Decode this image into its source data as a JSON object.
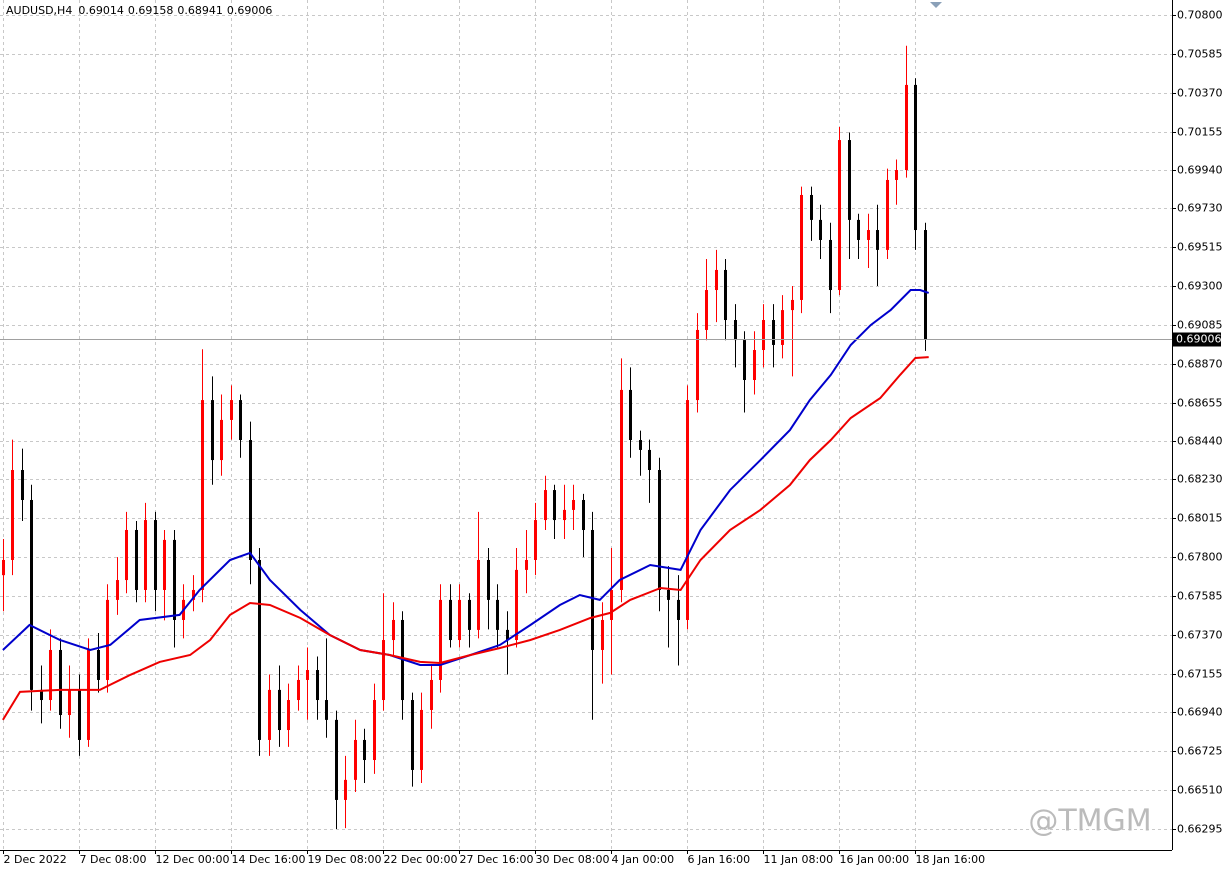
{
  "chart_data": {
    "type": "candlestick",
    "symbol": "AUDUSD,H4",
    "header_values": [
      "0.69014",
      "0.69158",
      "0.68941",
      "0.69006"
    ],
    "watermark": "@TMGM",
    "up_color": "#ff0000",
    "down_color": "#000000",
    "grid": true,
    "xlim": [
      -0.3,
      123
    ],
    "xticks": [
      {
        "value": 0,
        "label": "2 Dec 2022"
      },
      {
        "value": 8,
        "label": "7 Dec 08:00"
      },
      {
        "value": 16,
        "label": "12 Dec 00:00"
      },
      {
        "value": 24,
        "label": "14 Dec 16:00"
      },
      {
        "value": 32,
        "label": "19 Dec 08:00"
      },
      {
        "value": 40,
        "label": "22 Dec 00:00"
      },
      {
        "value": 48,
        "label": "27 Dec 16:00"
      },
      {
        "value": 56,
        "label": "30 Dec 08:00"
      },
      {
        "value": 64,
        "label": "4 Jan 00:00"
      },
      {
        "value": 72,
        "label": "6 Jan 16:00"
      },
      {
        "value": 80,
        "label": "11 Jan 08:00"
      },
      {
        "value": 88,
        "label": "16 Jan 00:00"
      },
      {
        "value": 96,
        "label": "18 Jan 16:00"
      }
    ],
    "ylim": [
      0.66179,
      0.70883
    ],
    "yticks": [
      {
        "value": 0.708,
        "label": "0.70800"
      },
      {
        "value": 0.70585,
        "label": "0.70585"
      },
      {
        "value": 0.7037,
        "label": "0.70370"
      },
      {
        "value": 0.70155,
        "label": "0.70155"
      },
      {
        "value": 0.6994,
        "label": "0.69940"
      },
      {
        "value": 0.6973,
        "label": "0.69730"
      },
      {
        "value": 0.69515,
        "label": "0.69515"
      },
      {
        "value": 0.693,
        "label": "0.69300"
      },
      {
        "value": 0.69085,
        "label": "0.69085"
      },
      {
        "value": 0.6887,
        "label": "0.68870"
      },
      {
        "value": 0.68655,
        "label": "0.68655"
      },
      {
        "value": 0.6844,
        "label": "0.68440"
      },
      {
        "value": 0.6823,
        "label": "0.68230"
      },
      {
        "value": 0.68015,
        "label": "0.68015"
      },
      {
        "value": 0.678,
        "label": "0.67800"
      },
      {
        "value": 0.67585,
        "label": "0.67585"
      },
      {
        "value": 0.6737,
        "label": "0.67370"
      },
      {
        "value": 0.67155,
        "label": "0.67155"
      },
      {
        "value": 0.6694,
        "label": "0.66940"
      },
      {
        "value": 0.66725,
        "label": "0.66725"
      },
      {
        "value": 0.6651,
        "label": "0.66510"
      },
      {
        "value": 0.66295,
        "label": "0.66295"
      }
    ],
    "last_price": {
      "value": 0.69006,
      "label": "0.69006"
    },
    "ohlc": [
      [
        0.677,
        0.679,
        0.675,
        0.67784
      ],
      [
        0.67784,
        0.6845,
        0.677,
        0.68282
      ],
      [
        0.68282,
        0.684,
        0.68,
        0.68116
      ],
      [
        0.68116,
        0.682,
        0.6695,
        0.67065
      ],
      [
        0.67065,
        0.672,
        0.6688,
        0.67009
      ],
      [
        0.67009,
        0.674,
        0.6695,
        0.67286
      ],
      [
        0.67286,
        0.6735,
        0.6685,
        0.66926
      ],
      [
        0.66926,
        0.672,
        0.668,
        0.67065
      ],
      [
        0.67065,
        0.6715,
        0.667,
        0.66788
      ],
      [
        0.66788,
        0.6735,
        0.6675,
        0.67286
      ],
      [
        0.67286,
        0.6738,
        0.6705,
        0.6712
      ],
      [
        0.6712,
        0.6765,
        0.6705,
        0.67563
      ],
      [
        0.67563,
        0.678,
        0.6748,
        0.67673
      ],
      [
        0.67673,
        0.6805,
        0.676,
        0.6795
      ],
      [
        0.6795,
        0.68,
        0.6755,
        0.67618
      ],
      [
        0.67618,
        0.681,
        0.6755,
        0.68005
      ],
      [
        0.68005,
        0.6805,
        0.675,
        0.67618
      ],
      [
        0.67618,
        0.6795,
        0.6745,
        0.67895
      ],
      [
        0.67895,
        0.6795,
        0.673,
        0.67452
      ],
      [
        0.67452,
        0.6765,
        0.6735,
        0.67563
      ],
      [
        0.67563,
        0.677,
        0.675,
        0.67618
      ],
      [
        0.67618,
        0.6895,
        0.6755,
        0.68669
      ],
      [
        0.68669,
        0.688,
        0.682,
        0.68337
      ],
      [
        0.68337,
        0.687,
        0.6825,
        0.68559
      ],
      [
        0.68559,
        0.6875,
        0.6845,
        0.68669
      ],
      [
        0.68669,
        0.687,
        0.6835,
        0.68448
      ],
      [
        0.68448,
        0.6855,
        0.6765,
        0.67784
      ],
      [
        0.67784,
        0.6785,
        0.667,
        0.66788
      ],
      [
        0.66788,
        0.6715,
        0.667,
        0.67065
      ],
      [
        0.67065,
        0.672,
        0.6675,
        0.66843
      ],
      [
        0.66843,
        0.671,
        0.6675,
        0.67009
      ],
      [
        0.67009,
        0.672,
        0.6695,
        0.6712
      ],
      [
        0.6712,
        0.673,
        0.669,
        0.67175
      ],
      [
        0.67175,
        0.6725,
        0.669,
        0.67009
      ],
      [
        0.67009,
        0.6735,
        0.668,
        0.66899
      ],
      [
        0.66899,
        0.6695,
        0.66295,
        0.66456
      ],
      [
        0.66456,
        0.667,
        0.663,
        0.66567
      ],
      [
        0.66567,
        0.669,
        0.665,
        0.66788
      ],
      [
        0.66788,
        0.6685,
        0.6655,
        0.66677
      ],
      [
        0.66677,
        0.671,
        0.666,
        0.67009
      ],
      [
        0.67009,
        0.676,
        0.6695,
        0.67341
      ],
      [
        0.67341,
        0.6755,
        0.6725,
        0.67452
      ],
      [
        0.67452,
        0.675,
        0.669,
        0.67009
      ],
      [
        0.67009,
        0.6705,
        0.6653,
        0.66622
      ],
      [
        0.66622,
        0.6705,
        0.6655,
        0.66954
      ],
      [
        0.66954,
        0.672,
        0.6685,
        0.6712
      ],
      [
        0.6712,
        0.6765,
        0.6705,
        0.67563
      ],
      [
        0.67563,
        0.6765,
        0.673,
        0.67341
      ],
      [
        0.67341,
        0.6765,
        0.673,
        0.67563
      ],
      [
        0.67563,
        0.676,
        0.673,
        0.67397
      ],
      [
        0.67397,
        0.6805,
        0.6735,
        0.67784
      ],
      [
        0.67784,
        0.6785,
        0.674,
        0.67563
      ],
      [
        0.67563,
        0.6765,
        0.673,
        0.67397
      ],
      [
        0.67397,
        0.675,
        0.6715,
        0.67341
      ],
      [
        0.67341,
        0.6785,
        0.673,
        0.67729
      ],
      [
        0.67729,
        0.6795,
        0.676,
        0.67784
      ],
      [
        0.67784,
        0.681,
        0.677,
        0.68005
      ],
      [
        0.68005,
        0.6825,
        0.6795,
        0.68171
      ],
      [
        0.68171,
        0.682,
        0.679,
        0.68005
      ],
      [
        0.68005,
        0.682,
        0.679,
        0.68061
      ],
      [
        0.68061,
        0.682,
        0.6795,
        0.68116
      ],
      [
        0.68116,
        0.6815,
        0.678,
        0.6795
      ],
      [
        0.6795,
        0.6805,
        0.669,
        0.67286
      ],
      [
        0.67286,
        0.6755,
        0.671,
        0.67452
      ],
      [
        0.67452,
        0.6785,
        0.6715,
        0.67618
      ],
      [
        0.67618,
        0.689,
        0.6755,
        0.68725
      ],
      [
        0.68725,
        0.6885,
        0.6835,
        0.68448
      ],
      [
        0.68448,
        0.685,
        0.6825,
        0.68393
      ],
      [
        0.68393,
        0.6845,
        0.681,
        0.68282
      ],
      [
        0.68282,
        0.6835,
        0.675,
        0.67618
      ],
      [
        0.67618,
        0.6775,
        0.673,
        0.67563
      ],
      [
        0.67563,
        0.677,
        0.672,
        0.67452
      ],
      [
        0.67452,
        0.6875,
        0.674,
        0.68669
      ],
      [
        0.68669,
        0.6915,
        0.686,
        0.69057
      ],
      [
        0.69057,
        0.6945,
        0.69,
        0.69278
      ],
      [
        0.69278,
        0.695,
        0.691,
        0.69389
      ],
      [
        0.69389,
        0.6945,
        0.69,
        0.69112
      ],
      [
        0.69112,
        0.692,
        0.6885,
        0.69001
      ],
      [
        0.69001,
        0.6905,
        0.686,
        0.6878
      ],
      [
        0.6878,
        0.6905,
        0.687,
        0.68946
      ],
      [
        0.68946,
        0.692,
        0.6885,
        0.69112
      ],
      [
        0.69112,
        0.692,
        0.6885,
        0.68974
      ],
      [
        0.68974,
        0.6925,
        0.689,
        0.69167
      ],
      [
        0.69167,
        0.693,
        0.688,
        0.69223
      ],
      [
        0.69223,
        0.6985,
        0.6915,
        0.69804
      ],
      [
        0.69804,
        0.6985,
        0.6955,
        0.69666
      ],
      [
        0.69666,
        0.6975,
        0.6945,
        0.69555
      ],
      [
        0.69555,
        0.6965,
        0.6915,
        0.69278
      ],
      [
        0.69278,
        0.7018,
        0.6925,
        0.70108
      ],
      [
        0.70108,
        0.7015,
        0.6945,
        0.69666
      ],
      [
        0.69666,
        0.697,
        0.6945,
        0.69555
      ],
      [
        0.69555,
        0.697,
        0.694,
        0.6961
      ],
      [
        0.6961,
        0.6975,
        0.693,
        0.695
      ],
      [
        0.695,
        0.6995,
        0.6945,
        0.69887
      ],
      [
        0.69887,
        0.7,
        0.6975,
        0.69942
      ],
      [
        0.69942,
        0.7063,
        0.699,
        0.70413
      ],
      [
        0.70413,
        0.7045,
        0.695,
        0.6961
      ],
      [
        0.6961,
        0.6965,
        0.68941,
        0.69006
      ]
    ],
    "series": [
      {
        "color": "#0000cc",
        "x": [
          0,
          2.8,
          6,
          9.2,
          11.3,
          14.4,
          18.6,
          20.7,
          23.9,
          26,
          28.1,
          31.3,
          34.4,
          37.6,
          40.7,
          43.9,
          46,
          49.2,
          52.3,
          55.5,
          58.6,
          60.7,
          62.8,
          64.9,
          68.1,
          71.3,
          73.4,
          76.5,
          79.7,
          82.8,
          84.9,
          87.1,
          89.2,
          91.3,
          93.4,
          95.5,
          96.5,
          97.4
        ],
        "values": [
          0.67286,
          0.67424,
          0.67341,
          0.67286,
          0.67314,
          0.67452,
          0.6748,
          0.67618,
          0.67784,
          0.67823,
          0.67673,
          0.67507,
          0.67369,
          0.67286,
          0.67258,
          0.67203,
          0.67203,
          0.67258,
          0.67314,
          0.67424,
          0.67535,
          0.6759,
          0.67563,
          0.67673,
          0.67756,
          0.67729,
          0.6795,
          0.68171,
          0.68337,
          0.68503,
          0.68669,
          0.68808,
          0.68974,
          0.69084,
          0.69167,
          0.69278,
          0.69278,
          0.69262
        ]
      },
      {
        "color": "#ee0000",
        "x": [
          0,
          1.8,
          6,
          10.2,
          13.4,
          16.5,
          19.7,
          21.8,
          23.9,
          26,
          28.1,
          31.3,
          34.4,
          37.6,
          40.7,
          43.9,
          46,
          49.2,
          52.3,
          55.5,
          58.6,
          61.8,
          63.9,
          66,
          69.2,
          71.3,
          73.4,
          76.5,
          79.7,
          82.8,
          84.9,
          87.1,
          89.2,
          92.3,
          94.4,
          96,
          97.4
        ],
        "values": [
          0.66899,
          0.67054,
          0.67065,
          0.67065,
          0.67148,
          0.6722,
          0.67258,
          0.67341,
          0.6748,
          0.67546,
          0.67535,
          0.67463,
          0.67369,
          0.67286,
          0.67258,
          0.6722,
          0.67214,
          0.67258,
          0.67297,
          0.67341,
          0.67397,
          0.67463,
          0.67491,
          0.67563,
          0.67629,
          0.67618,
          0.67784,
          0.6795,
          0.68061,
          0.68199,
          0.68337,
          0.68448,
          0.6857,
          0.6868,
          0.68808,
          0.68902,
          0.68907
        ]
      }
    ]
  }
}
